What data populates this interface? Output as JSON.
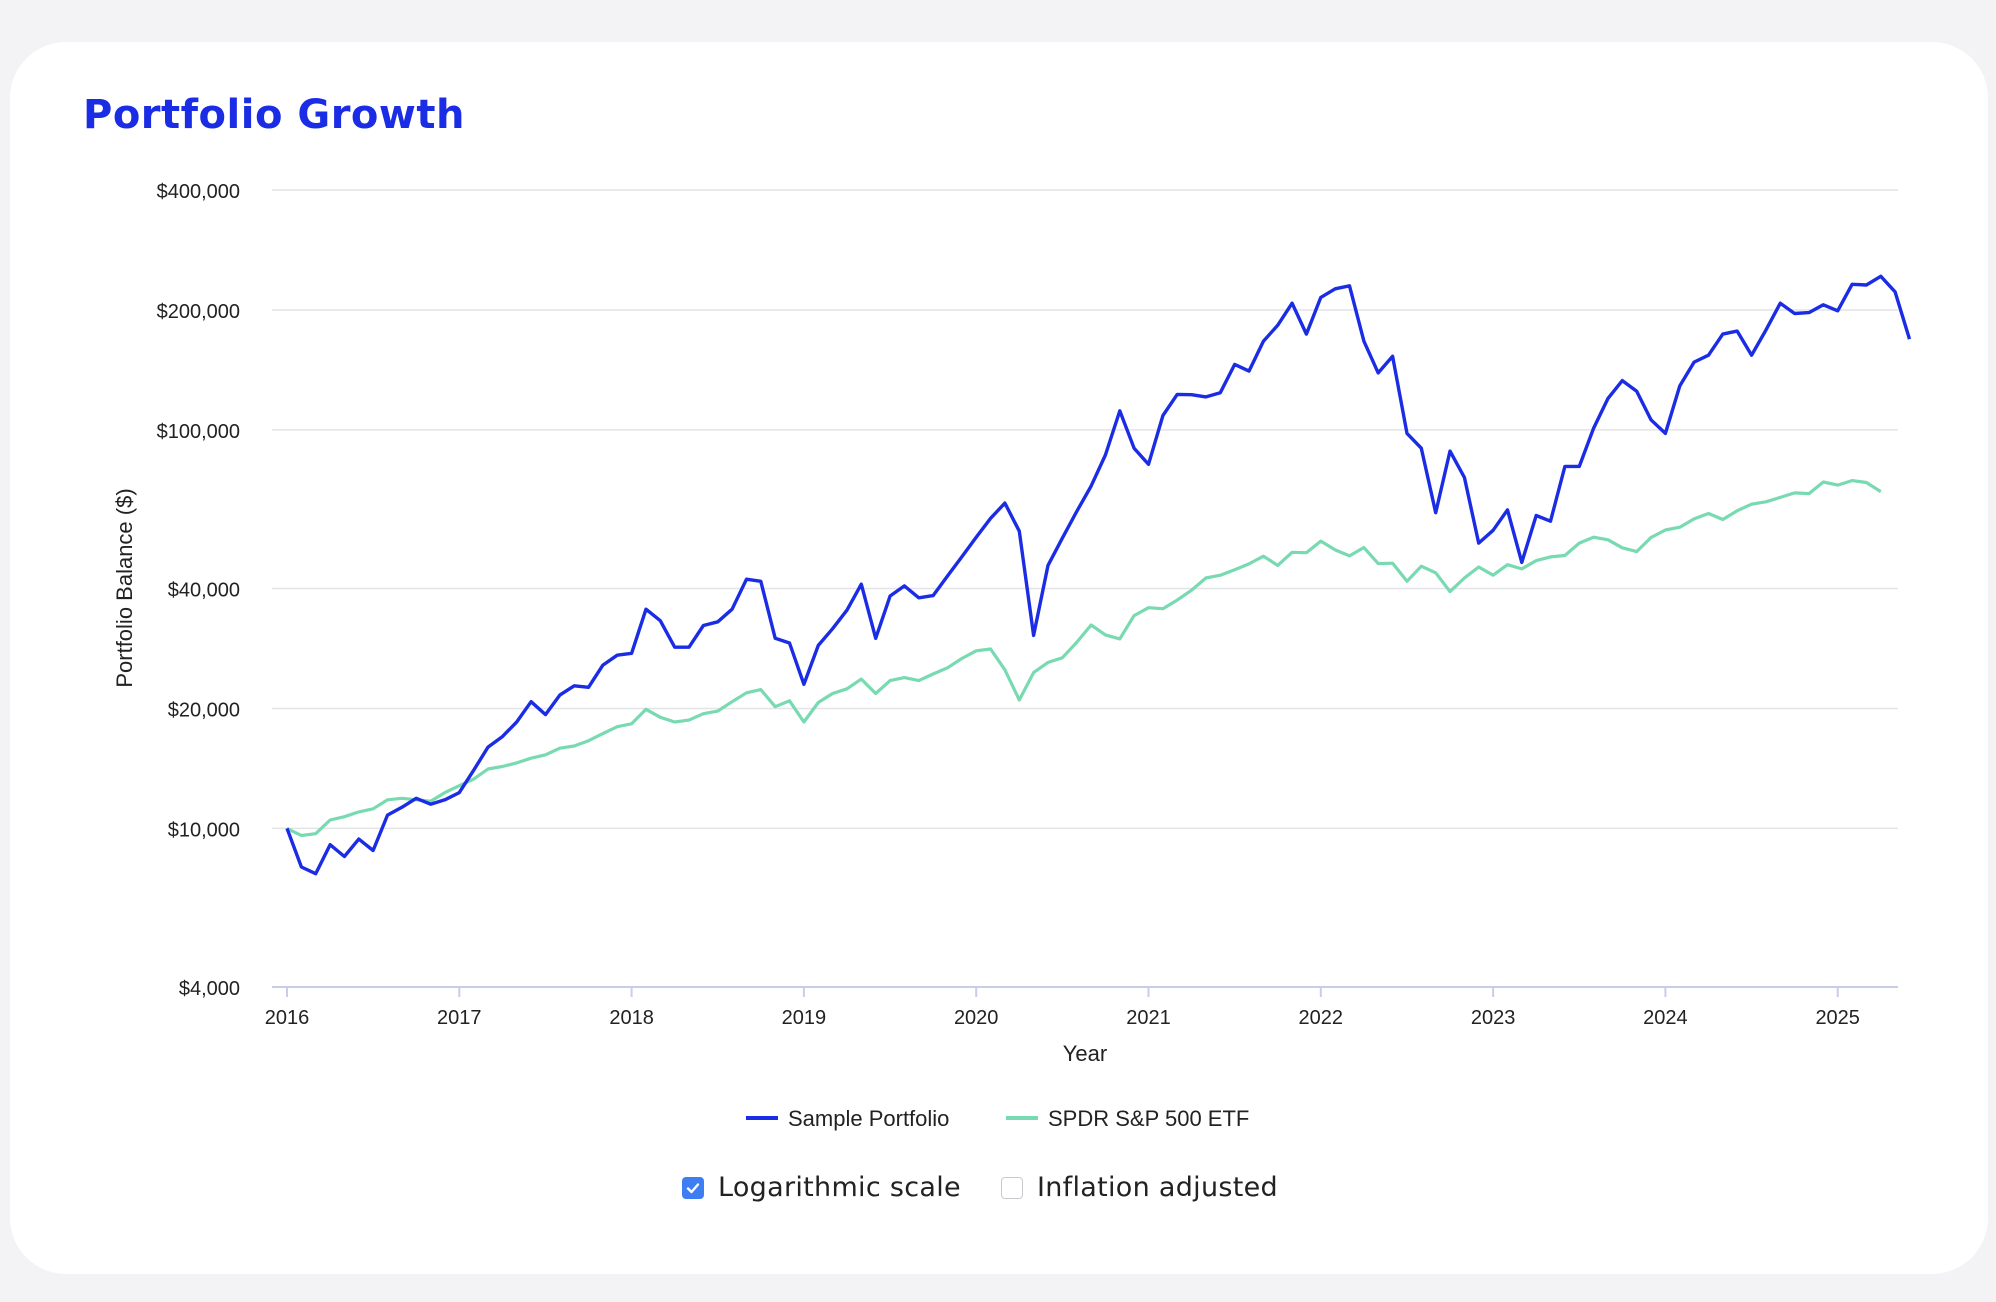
{
  "card": {
    "title": "Portfolio Growth"
  },
  "colors": {
    "portfolio": "#1b2ce5",
    "benchmark": "#78dab0",
    "title": "#1b2ce5",
    "checkbox": "#3f7ef2"
  },
  "chart_data": {
    "type": "line",
    "xlabel": "Year",
    "ylabel": "Portfolio Balance ($)",
    "y_scale": "log",
    "ylim": [
      4000,
      400000
    ],
    "y_ticks": [
      4000,
      10000,
      20000,
      40000,
      100000,
      200000,
      400000
    ],
    "y_tick_labels": [
      "$4,000",
      "$10,000",
      "$20,000",
      "$40,000",
      "$100,000",
      "$200,000",
      "$400,000"
    ],
    "x_ticks": [
      2016,
      2017,
      2018,
      2019,
      2020,
      2021,
      2022,
      2023,
      2024,
      2025
    ],
    "x_tick_labels": [
      "2016",
      "2017",
      "2018",
      "2019",
      "2020",
      "2021",
      "2022",
      "2023",
      "2024",
      "2025"
    ],
    "xlim": [
      2016,
      2025.33
    ],
    "grid": true,
    "legend_position": "bottom-center",
    "series": [
      {
        "name": "Sample Portfolio",
        "x_start": 2016,
        "x_step_months": 1,
        "values": [
          10000,
          8000,
          7700,
          9100,
          8500,
          9400,
          8800,
          10800,
          11300,
          11900,
          11500,
          11800,
          12300,
          14000,
          16000,
          17000,
          18500,
          20800,
          19300,
          21600,
          22800,
          22600,
          25700,
          27200,
          27500,
          35500,
          33200,
          28500,
          28500,
          32300,
          33000,
          35500,
          42200,
          41700,
          30000,
          29200,
          23000,
          28800,
          31700,
          35300,
          41000,
          30000,
          38300,
          40600,
          37900,
          38400,
          43000,
          48000,
          53800,
          60000,
          65500,
          55700,
          30500,
          45700,
          53500,
          62400,
          72300,
          86500,
          111600,
          90000,
          82000,
          108600,
          122800,
          122600,
          121000,
          124000,
          146000,
          140500,
          167000,
          183000,
          208000,
          174000,
          215000,
          226000,
          230000,
          167000,
          139000,
          153000,
          98000,
          90000,
          62000,
          88500,
          76000,
          52000,
          56000,
          63000,
          46500,
          61000,
          59000,
          81000,
          81000,
          101000,
          120000,
          133000,
          125000,
          106000,
          98000,
          129000,
          148000,
          154000,
          174000,
          177000,
          154000,
          178000,
          208000,
          196000,
          197000,
          206000,
          199000,
          232000,
          231000,
          243000,
          222000,
          169000
        ]
      },
      {
        "name": "SPDR S&P 500 ETF",
        "x_start": 2016,
        "x_step_months": 1,
        "values": [
          10000,
          9600,
          9700,
          10500,
          10700,
          11000,
          11200,
          11800,
          11900,
          11800,
          11700,
          12300,
          12800,
          13300,
          14100,
          14300,
          14600,
          15000,
          15300,
          15900,
          16100,
          16600,
          17300,
          18000,
          18300,
          19900,
          19000,
          18500,
          18700,
          19400,
          19700,
          20800,
          21900,
          22300,
          20200,
          20900,
          18500,
          20700,
          21800,
          22400,
          23700,
          21800,
          23500,
          23900,
          23500,
          24400,
          25300,
          26700,
          27900,
          28200,
          25000,
          21000,
          24600,
          26100,
          26800,
          29300,
          32400,
          30600,
          29900,
          34200,
          35800,
          35600,
          37400,
          39600,
          42500,
          43200,
          44600,
          46100,
          48200,
          45700,
          49300,
          49200,
          52600,
          50000,
          48300,
          50700,
          46200,
          46300,
          41700,
          45500,
          43800,
          39300,
          42500,
          45300,
          43200,
          45900,
          44800,
          47000,
          48000,
          48400,
          52000,
          53800,
          53000,
          50600,
          49500,
          53700,
          56100,
          57000,
          59800,
          61700,
          59600,
          62700,
          65100,
          66000,
          67700,
          69500,
          69200,
          74000,
          72700,
          74600,
          73800,
          70000
        ]
      }
    ]
  },
  "controls": {
    "log_scale": {
      "label": "Logarithmic scale",
      "checked": true
    },
    "inflation": {
      "label": "Inflation adjusted",
      "checked": false
    }
  }
}
